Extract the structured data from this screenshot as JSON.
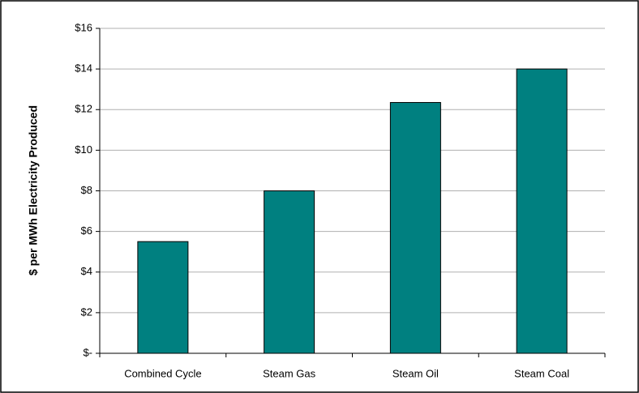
{
  "chart_data": {
    "type": "bar",
    "y_label": "$ per MWh Electricity Produced",
    "categories": [
      "Combined Cycle",
      "Steam Gas",
      "Steam Oil",
      "Steam Coal"
    ],
    "values": [
      5.5,
      8.0,
      12.35,
      14.0
    ],
    "color": "#008080",
    "ylim": [
      0,
      16
    ],
    "yticks": [
      {
        "value": 0,
        "label": "$-"
      },
      {
        "value": 2,
        "label": "$2"
      },
      {
        "value": 4,
        "label": "$4"
      },
      {
        "value": 6,
        "label": "$6"
      },
      {
        "value": 8,
        "label": "$8"
      },
      {
        "value": 10,
        "label": "$10"
      },
      {
        "value": 12,
        "label": "$12"
      },
      {
        "value": 14,
        "label": "$14"
      },
      {
        "value": 16,
        "label": "$16"
      }
    ],
    "grid": true
  }
}
